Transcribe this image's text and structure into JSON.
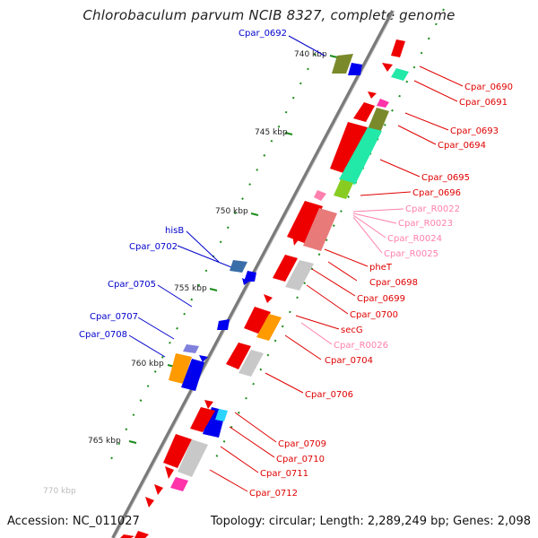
{
  "title": "Chlorobaculum parvum NCIB 8327, complete genome",
  "footer": {
    "accession": "Accession: NC_011027",
    "topology": "Topology: circular; Length: 2,289,249 bp; Genes: 2,098"
  },
  "colors": {
    "forward_label": "#e00000",
    "reverse_label": "#0000cc",
    "rna_label": "#ff7fae",
    "backbone": "#808080",
    "tick": "#1a8c1a"
  },
  "scale_labels": [
    {
      "label": "740 kbp"
    },
    {
      "label": "745 kbp"
    },
    {
      "label": "750 kbp"
    },
    {
      "label": "755 kbp"
    },
    {
      "label": "760 kbp"
    },
    {
      "label": "765 kbp"
    },
    {
      "label": "770 kbp"
    }
  ],
  "reverse_labels": [
    {
      "text": "Cpar_0692"
    },
    {
      "text": "hisB"
    },
    {
      "text": "Cpar_0702"
    },
    {
      "text": "Cpar_0705"
    },
    {
      "text": "Cpar_0707"
    },
    {
      "text": "Cpar_0708"
    }
  ],
  "forward_labels": [
    {
      "text": "Cpar_0690",
      "type": "gene"
    },
    {
      "text": "Cpar_0691",
      "type": "gene"
    },
    {
      "text": "Cpar_0693",
      "type": "gene"
    },
    {
      "text": "Cpar_0694",
      "type": "gene"
    },
    {
      "text": "Cpar_0695",
      "type": "gene"
    },
    {
      "text": "Cpar_0696",
      "type": "gene"
    },
    {
      "text": "Cpar_R0022",
      "type": "rna"
    },
    {
      "text": "Cpar_R0023",
      "type": "rna"
    },
    {
      "text": "Cpar_R0024",
      "type": "rna"
    },
    {
      "text": "Cpar_R0025",
      "type": "rna"
    },
    {
      "text": "pheT",
      "type": "gene"
    },
    {
      "text": "Cpar_0698",
      "type": "gene"
    },
    {
      "text": "Cpar_0699",
      "type": "gene"
    },
    {
      "text": "Cpar_0700",
      "type": "gene"
    },
    {
      "text": "secG",
      "type": "gene"
    },
    {
      "text": "Cpar_R0026",
      "type": "rna"
    },
    {
      "text": "Cpar_0704",
      "type": "gene"
    },
    {
      "text": "Cpar_0706",
      "type": "gene"
    },
    {
      "text": "Cpar_0709",
      "type": "gene"
    },
    {
      "text": "Cpar_0710",
      "type": "gene"
    },
    {
      "text": "Cpar_0711",
      "type": "gene"
    },
    {
      "text": "Cpar_0712",
      "type": "gene"
    }
  ]
}
